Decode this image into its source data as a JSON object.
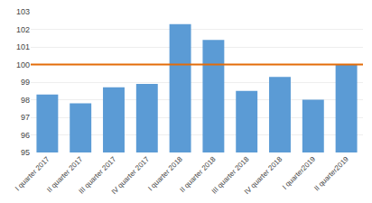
{
  "chart_data": {
    "type": "bar",
    "categories": [
      "I quarter 2017",
      "II quarter 2017",
      "III quarter 2017",
      "IV quarter 2017",
      "I quarter 2018",
      "II quarter 2018",
      "III quarter 2018",
      "IV quarter 2018",
      "I quarter2019",
      "II quarter2019"
    ],
    "values": [
      98.3,
      97.8,
      98.7,
      98.9,
      102.3,
      101.4,
      98.5,
      99.3,
      98.0,
      100.0
    ],
    "color": "#5B9BD5",
    "reference_line": {
      "value": 100,
      "color": "#E36C09"
    },
    "ylim": [
      95,
      103
    ],
    "yticks": [
      95,
      96,
      97,
      98,
      99,
      100,
      101,
      102,
      103
    ],
    "grid": true
  }
}
